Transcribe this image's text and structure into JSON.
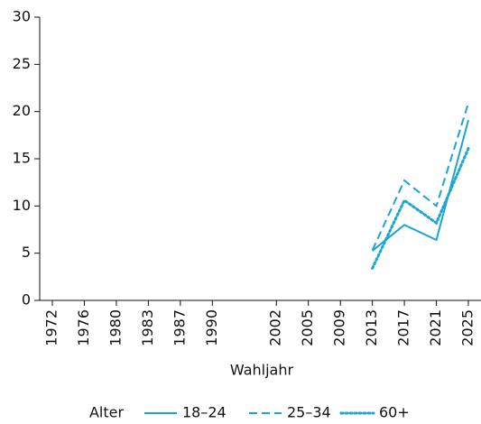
{
  "chart_data": {
    "type": "line",
    "x_label": "Wahljahr",
    "legend_title": "Alter",
    "legend": "bottom",
    "categories": [
      "1972",
      "1976",
      "1980",
      "1983",
      "1987",
      "1990",
      null,
      "2002",
      "2005",
      "2009",
      "2013",
      "2017",
      "2021",
      "2025"
    ],
    "series": [
      {
        "name": "18–24",
        "color": "#1aa5d4",
        "linestyle": "solid",
        "values": [
          null,
          null,
          null,
          null,
          null,
          null,
          null,
          null,
          null,
          null,
          5.25,
          8.0,
          6.4,
          19.1
        ]
      },
      {
        "name": "25–34",
        "color": "#1aa5d4",
        "linestyle": "dashed",
        "values": [
          null,
          null,
          null,
          null,
          null,
          null,
          null,
          null,
          null,
          null,
          5.3,
          12.7,
          10.0,
          20.9
        ]
      },
      {
        "name": "60+",
        "color": "#1aa5d4",
        "linestyle": "dotted",
        "values": [
          null,
          null,
          null,
          null,
          null,
          null,
          null,
          null,
          null,
          null,
          3.4,
          10.6,
          8.2,
          16.1
        ]
      }
    ],
    "ylim": [
      0,
      30
    ],
    "yticks": [
      0,
      5,
      10,
      15,
      20,
      25,
      30
    ],
    "grid": false
  }
}
